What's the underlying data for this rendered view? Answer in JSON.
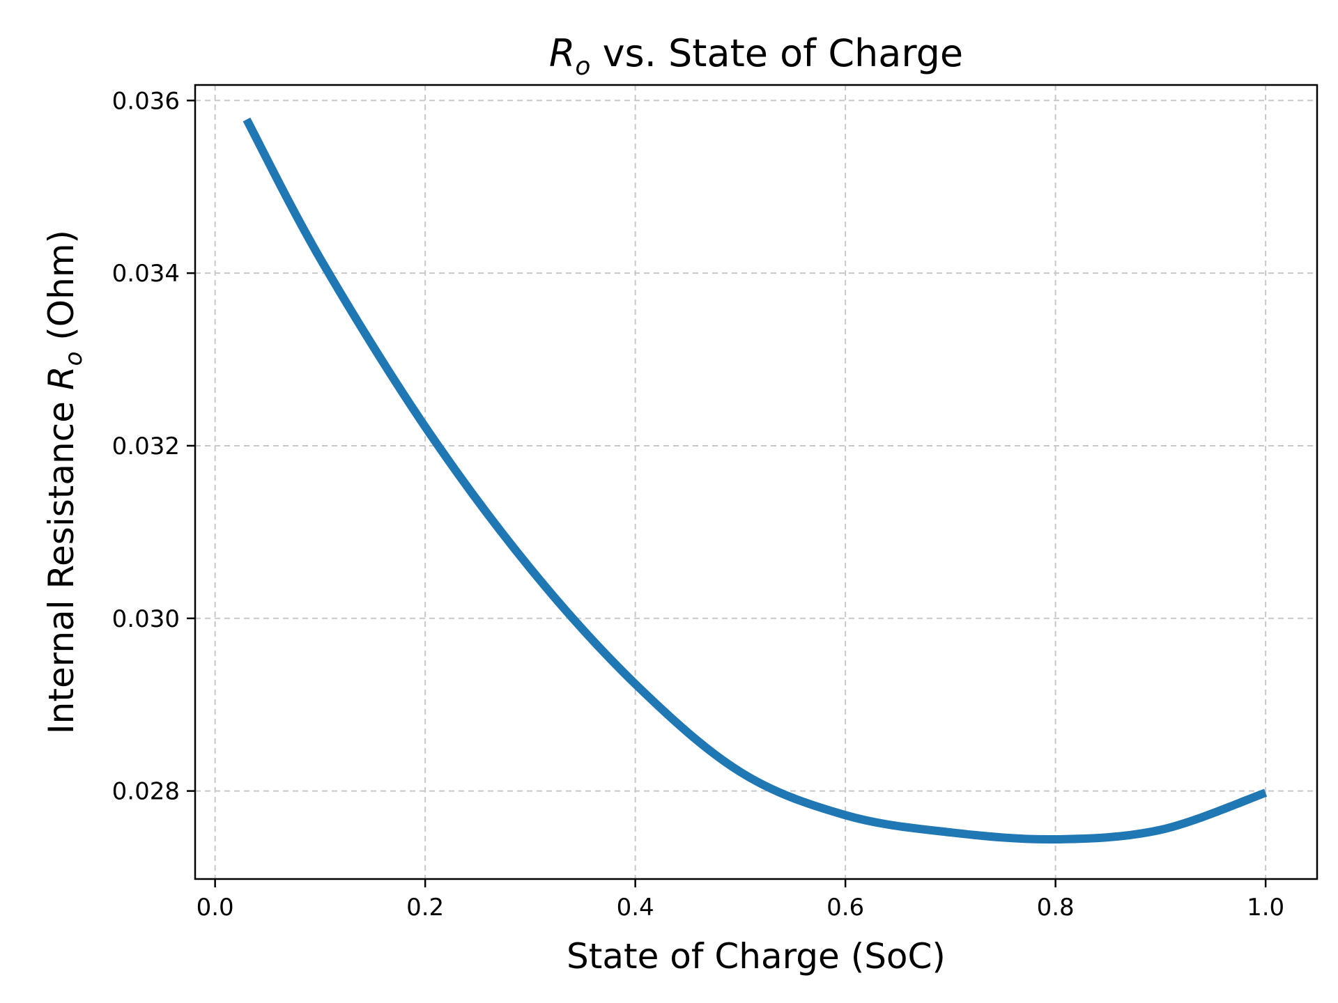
{
  "chart_data": {
    "type": "line",
    "title_main": "R",
    "title_sub": "o",
    "title_rest": " vs. State of Charge",
    "xlabel": "State of Charge (SoC)",
    "ylabel_pre": "Internal Resistance ",
    "ylabel_var": "R",
    "ylabel_sub": "o",
    "ylabel_post": " (Ohm)",
    "xlim": [
      -0.019,
      1.049
    ],
    "ylim": [
      0.02698,
      0.03618
    ],
    "xticks": [
      0.0,
      0.2,
      0.4,
      0.6,
      0.8,
      1.0
    ],
    "xtick_labels": [
      "0.0",
      "0.2",
      "0.4",
      "0.6",
      "0.8",
      "1.0"
    ],
    "yticks": [
      0.028,
      0.03,
      0.032,
      0.034,
      0.036
    ],
    "ytick_labels": [
      "0.028",
      "0.030",
      "0.032",
      "0.034",
      "0.036"
    ],
    "grid": true,
    "series": [
      {
        "color": "#1f77b4",
        "x": [
          0.03,
          0.1,
          0.2,
          0.3,
          0.4,
          0.5,
          0.6,
          0.7,
          0.8,
          0.9,
          1.0
        ],
        "y": [
          0.03578,
          0.03417,
          0.03222,
          0.03058,
          0.02924,
          0.02822,
          0.02772,
          0.02752,
          0.02744,
          0.02755,
          0.02798
        ]
      }
    ]
  }
}
